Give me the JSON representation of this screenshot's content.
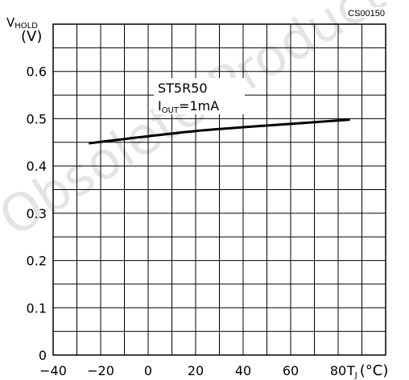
{
  "chart_data": {
    "type": "line",
    "code": "CS00150",
    "y_label": {
      "main": "V",
      "sub": "HOLD",
      "unit": "(V)"
    },
    "x_label": {
      "main": "T",
      "sub": "J",
      "unit": "(°C)"
    },
    "x_ticks": [
      "−40",
      "−20",
      "0",
      "20",
      "40",
      "60",
      "80"
    ],
    "y_ticks": [
      "0",
      "0.1",
      "0.2",
      "0.3",
      "0.4",
      "0.5",
      "0.6"
    ],
    "xlim": [
      -40,
      100
    ],
    "ylim": [
      0,
      0.7
    ],
    "grid": true,
    "annotation": {
      "line1": "ST5R50",
      "line2_main": "I",
      "line2_sub": "OUT",
      "line2_rest": "=1mA"
    },
    "watermark": "Obsolete Product",
    "series": [
      {
        "color": "#000000",
        "x": [
          -25,
          -10,
          0,
          20,
          40,
          60,
          85
        ],
        "y": [
          0.448,
          0.457,
          0.463,
          0.474,
          0.482,
          0.489,
          0.498
        ]
      }
    ]
  }
}
